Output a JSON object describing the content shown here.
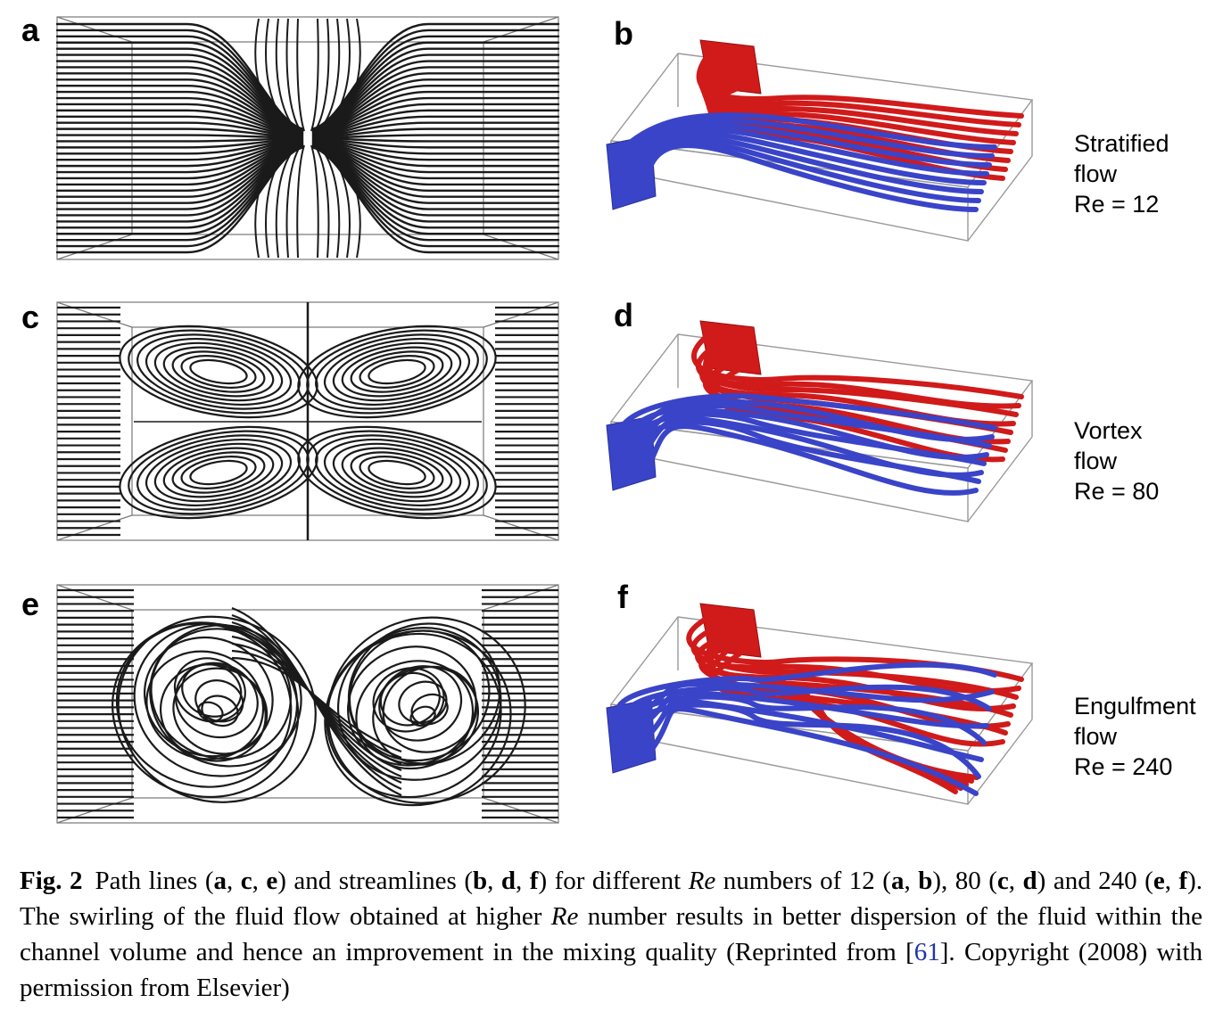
{
  "panels": {
    "a": {
      "letter": "a"
    },
    "b": {
      "letter": "b"
    },
    "c": {
      "letter": "c"
    },
    "d": {
      "letter": "d"
    },
    "e": {
      "letter": "e"
    },
    "f": {
      "letter": "f"
    }
  },
  "flow_labels": [
    {
      "line1": "Stratified",
      "line2": "flow",
      "line3": "Re = 12"
    },
    {
      "line1": "Vortex",
      "line2": "flow",
      "line3": "Re = 80"
    },
    {
      "line1": "Engulfment",
      "line2": "flow",
      "line3": "Re = 240"
    }
  ],
  "colors": {
    "hot_fluid": "#d11a1a",
    "cold_fluid": "#3a44c8",
    "pathline": "#1a1a1a",
    "reference_link": "#2233aa"
  },
  "caption": {
    "fig_label": "Fig. 2",
    "t1": "Path lines (",
    "b1": "a",
    "s1": ", ",
    "b2": "c",
    "s2": ", ",
    "b3": "e",
    "t2": ") and streamlines (",
    "b4": "b",
    "s3": ", ",
    "b5": "d",
    "s4": ", ",
    "b6": "f",
    "t3": ") for different ",
    "i1": "Re",
    "t4": " numbers of 12 (",
    "b7": "a",
    "s5": ", ",
    "b8": "b",
    "t5": "), 80 (",
    "b9": "c",
    "s6": ", ",
    "b10": "d",
    "t6": ") and 240 (",
    "b11": "e",
    "s7": ", ",
    "b12": "f",
    "t7": "). The swirling of the fluid flow obtained at higher ",
    "i2": "Re",
    "t8": " number results in better dispersion of the fluid within the channel volume and hence an improvement in the mixing quality (Reprinted from [",
    "ref": "61",
    "t9": "]. Copyright (2008) with permission from Elsevier)"
  }
}
